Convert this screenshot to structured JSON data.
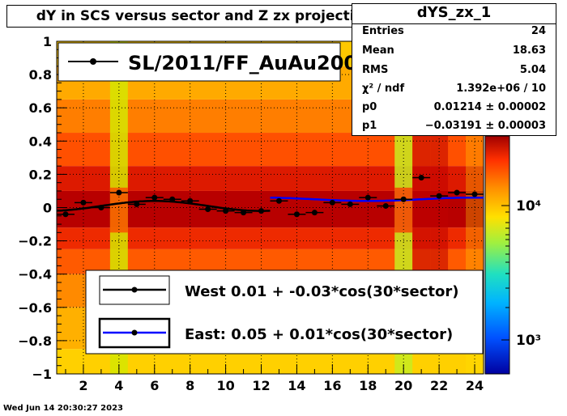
{
  "title": "dY in SCS versus sector and Z zx projection",
  "stats": {
    "name": "dYS_zx_1",
    "rows": [
      {
        "key": "Entries",
        "value": "24"
      },
      {
        "key": "Mean",
        "value": "18.63"
      },
      {
        "key": "RMS",
        "value": "5.04"
      },
      {
        "key": "χ² / ndf",
        "value": "1.392e+06 / 10"
      },
      {
        "key": "p0",
        "value": "0.01214 ± 0.00002"
      },
      {
        "key": "p1",
        "value": "−0.03191 ± 0.00003"
      }
    ]
  },
  "timestamp": "Wed Jun 14 20:30:27 2023",
  "chart_data": {
    "type": "scatter",
    "xlim": [
      0.5,
      24.5
    ],
    "ylim": [
      -1,
      1
    ],
    "x_ticks": [
      "2",
      "4",
      "6",
      "8",
      "10",
      "12",
      "14",
      "16",
      "18",
      "20",
      "22",
      "24"
    ],
    "y_ticks": [
      "−1",
      "−0.8",
      "−0.6",
      "−0.4",
      "−0.2",
      "0",
      "0.2",
      "0.4",
      "0.6",
      "0.8",
      "1"
    ],
    "colorbar_ticks": [
      "10³",
      "10⁴"
    ],
    "grid": true,
    "points": {
      "x": [
        1,
        2,
        3,
        4,
        5,
        6,
        7,
        8,
        9,
        10,
        11,
        12,
        13,
        14,
        15,
        16,
        17,
        18,
        19,
        20,
        21,
        22,
        23,
        24
      ],
      "y": [
        -0.04,
        0.03,
        0.0,
        0.09,
        0.02,
        0.06,
        0.05,
        0.04,
        -0.01,
        -0.02,
        -0.03,
        -0.02,
        0.04,
        -0.04,
        -0.03,
        0.03,
        0.02,
        0.06,
        0.01,
        0.05,
        0.18,
        0.07,
        0.09,
        0.08
      ]
    },
    "fits": [
      {
        "name": "West",
        "p0": 0.01,
        "p1": -0.03,
        "x_range": [
          0.5,
          12.5
        ],
        "color": "#000000"
      },
      {
        "name": "East",
        "p0": 0.05,
        "p1": 0.01,
        "x_range": [
          12.5,
          24.5
        ],
        "color": "#0000ff"
      }
    ],
    "legend_top": {
      "label": "SL/2011/FF_AuAu200"
    },
    "legend_bottom": [
      {
        "label": "West  0.01 + -0.03*cos(30*sector)"
      },
      {
        "label": "East:  0.05 +  0.01*cos(30*sector)"
      }
    ]
  }
}
